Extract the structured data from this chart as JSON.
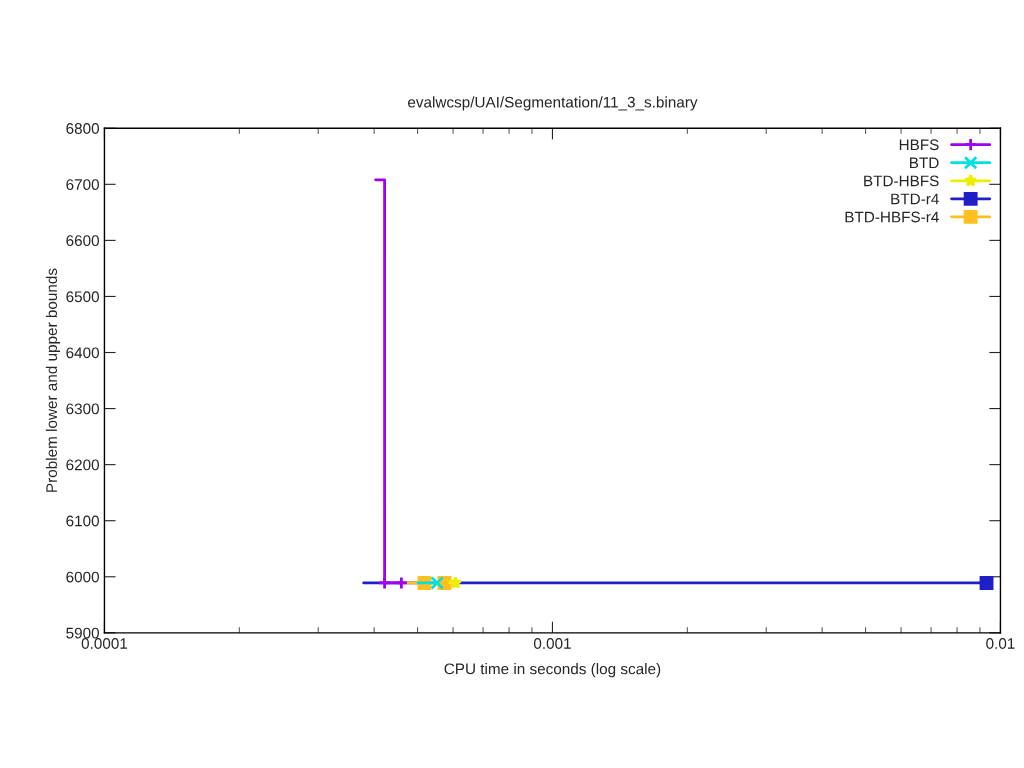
{
  "chart_data": {
    "type": "step",
    "title": "evalwcsp/UAI/Segmentation/11_3_s.binary",
    "xlabel": "CPU time in seconds (log scale)",
    "ylabel": "Problem lower and upper bounds",
    "log": "x",
    "xlim": [
      0.0001,
      0.01
    ],
    "xticks": [
      0.0001,
      0.001,
      0.01
    ],
    "ylim": [
      5900,
      6800
    ],
    "yticks": [
      5900,
      6000,
      6100,
      6200,
      6300,
      6400,
      6500,
      6600,
      6700,
      6800
    ],
    "grid": false,
    "legend": "top right",
    "series": [
      {
        "name": "HBFS",
        "color": "#a000f0",
        "marker": "plus",
        "x": [
          0.000403,
          0.000422,
          0.00046
        ],
        "values": [
          6708,
          5989,
          5989
        ]
      },
      {
        "name": "BTD",
        "color": "#00e0e0",
        "marker": "cross",
        "x": [
          0.000502,
          0.000553
        ],
        "values": [
          5989,
          5989
        ]
      },
      {
        "name": "BTD-HBFS",
        "color": "#eeee00",
        "marker": "star",
        "x": [
          0.00059,
          0.000607
        ],
        "values": [
          5989,
          5989
        ]
      },
      {
        "name": "BTD-r4",
        "color": "#2020c8",
        "marker": "square",
        "x": [
          0.000379,
          0.00931
        ],
        "values": [
          5989,
          5989
        ]
      },
      {
        "name": "BTD-HBFS-r4",
        "color": "#ffc020",
        "marker": "square",
        "x": [
          0.000474,
          0.000518,
          0.000574
        ],
        "values": [
          5989,
          5989,
          5989
        ]
      }
    ]
  }
}
